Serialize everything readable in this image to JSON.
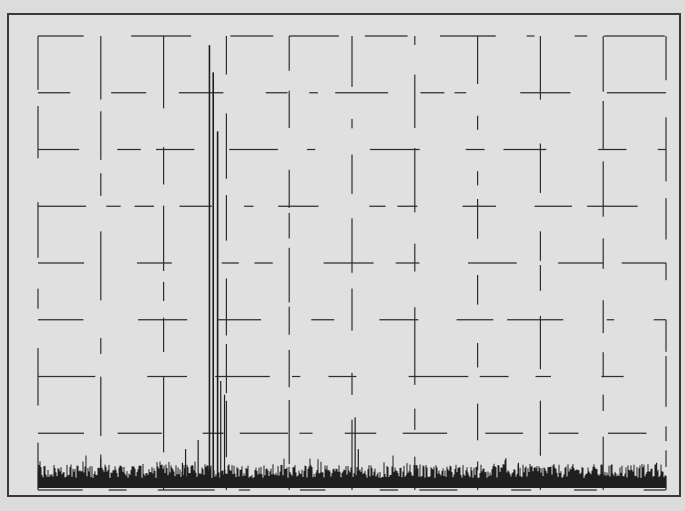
{
  "chart_data": {
    "type": "line",
    "title": "",
    "xlabel": "",
    "ylabel": "",
    "grid": true,
    "legend": "none",
    "x_range": [
      0,
      1
    ],
    "y_range": [
      0,
      1
    ],
    "series": [
      {
        "values_note_free": true,
        "peaks": [
          {
            "x": 0.035,
            "y": 0.04
          },
          {
            "x": 0.1,
            "y": 0.07
          },
          {
            "x": 0.23,
            "y": 0.06
          },
          {
            "x": 0.235,
            "y": 0.09
          },
          {
            "x": 0.255,
            "y": 0.11
          },
          {
            "x": 0.273,
            "y": 0.98
          },
          {
            "x": 0.279,
            "y": 0.92
          },
          {
            "x": 0.286,
            "y": 0.79
          },
          {
            "x": 0.291,
            "y": 0.24
          },
          {
            "x": 0.297,
            "y": 0.21
          },
          {
            "x": 0.505,
            "y": 0.16
          },
          {
            "x": 0.51,
            "y": 0.09
          },
          {
            "x": 0.745,
            "y": 0.07
          },
          {
            "x": 0.765,
            "y": 0.06
          },
          {
            "x": 0.985,
            "y": 0.06
          }
        ]
      }
    ]
  },
  "colors": {
    "background": "#dcdcdc",
    "plot_background": "#e0e0e0",
    "border": "#3a3a3a",
    "grid": "#2e2e2e",
    "trace": "#1f1f1f"
  }
}
